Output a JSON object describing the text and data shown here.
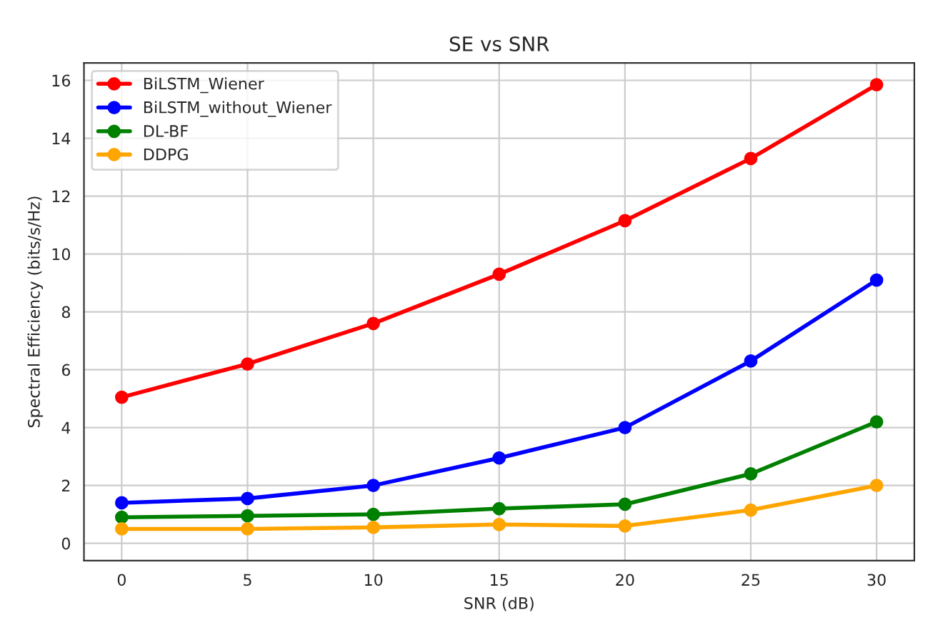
{
  "chart_data": {
    "type": "line",
    "title": "SE vs SNR",
    "xlabel": "SNR (dB)",
    "ylabel": "Spectral Efficiency (bits/s/Hz)",
    "x": [
      0,
      5,
      10,
      15,
      20,
      25,
      30
    ],
    "series": [
      {
        "name": "BiLSTM_Wiener",
        "color": "#ff0000",
        "values": [
          5.05,
          6.2,
          7.6,
          9.3,
          11.15,
          13.3,
          15.85
        ]
      },
      {
        "name": "BiLSTM_without_Wiener",
        "color": "#0000ff",
        "values": [
          1.4,
          1.55,
          2.0,
          2.95,
          4.0,
          6.3,
          9.1
        ]
      },
      {
        "name": "DL-BF",
        "color": "#008000",
        "values": [
          0.9,
          0.95,
          1.0,
          1.2,
          1.35,
          2.4,
          4.2
        ]
      },
      {
        "name": "DDPG",
        "color": "#ffa500",
        "values": [
          0.5,
          0.5,
          0.55,
          0.65,
          0.6,
          1.15,
          2.0
        ]
      }
    ],
    "xlim": [
      -1.5,
      31.5
    ],
    "ylim": [
      -0.6,
      16.6
    ],
    "xticks": [
      0,
      5,
      10,
      15,
      20,
      25,
      30
    ],
    "yticks": [
      0,
      2,
      4,
      6,
      8,
      10,
      12,
      14,
      16
    ],
    "grid": true,
    "legend": "top left",
    "marker": "circle",
    "line_style": "solid"
  }
}
